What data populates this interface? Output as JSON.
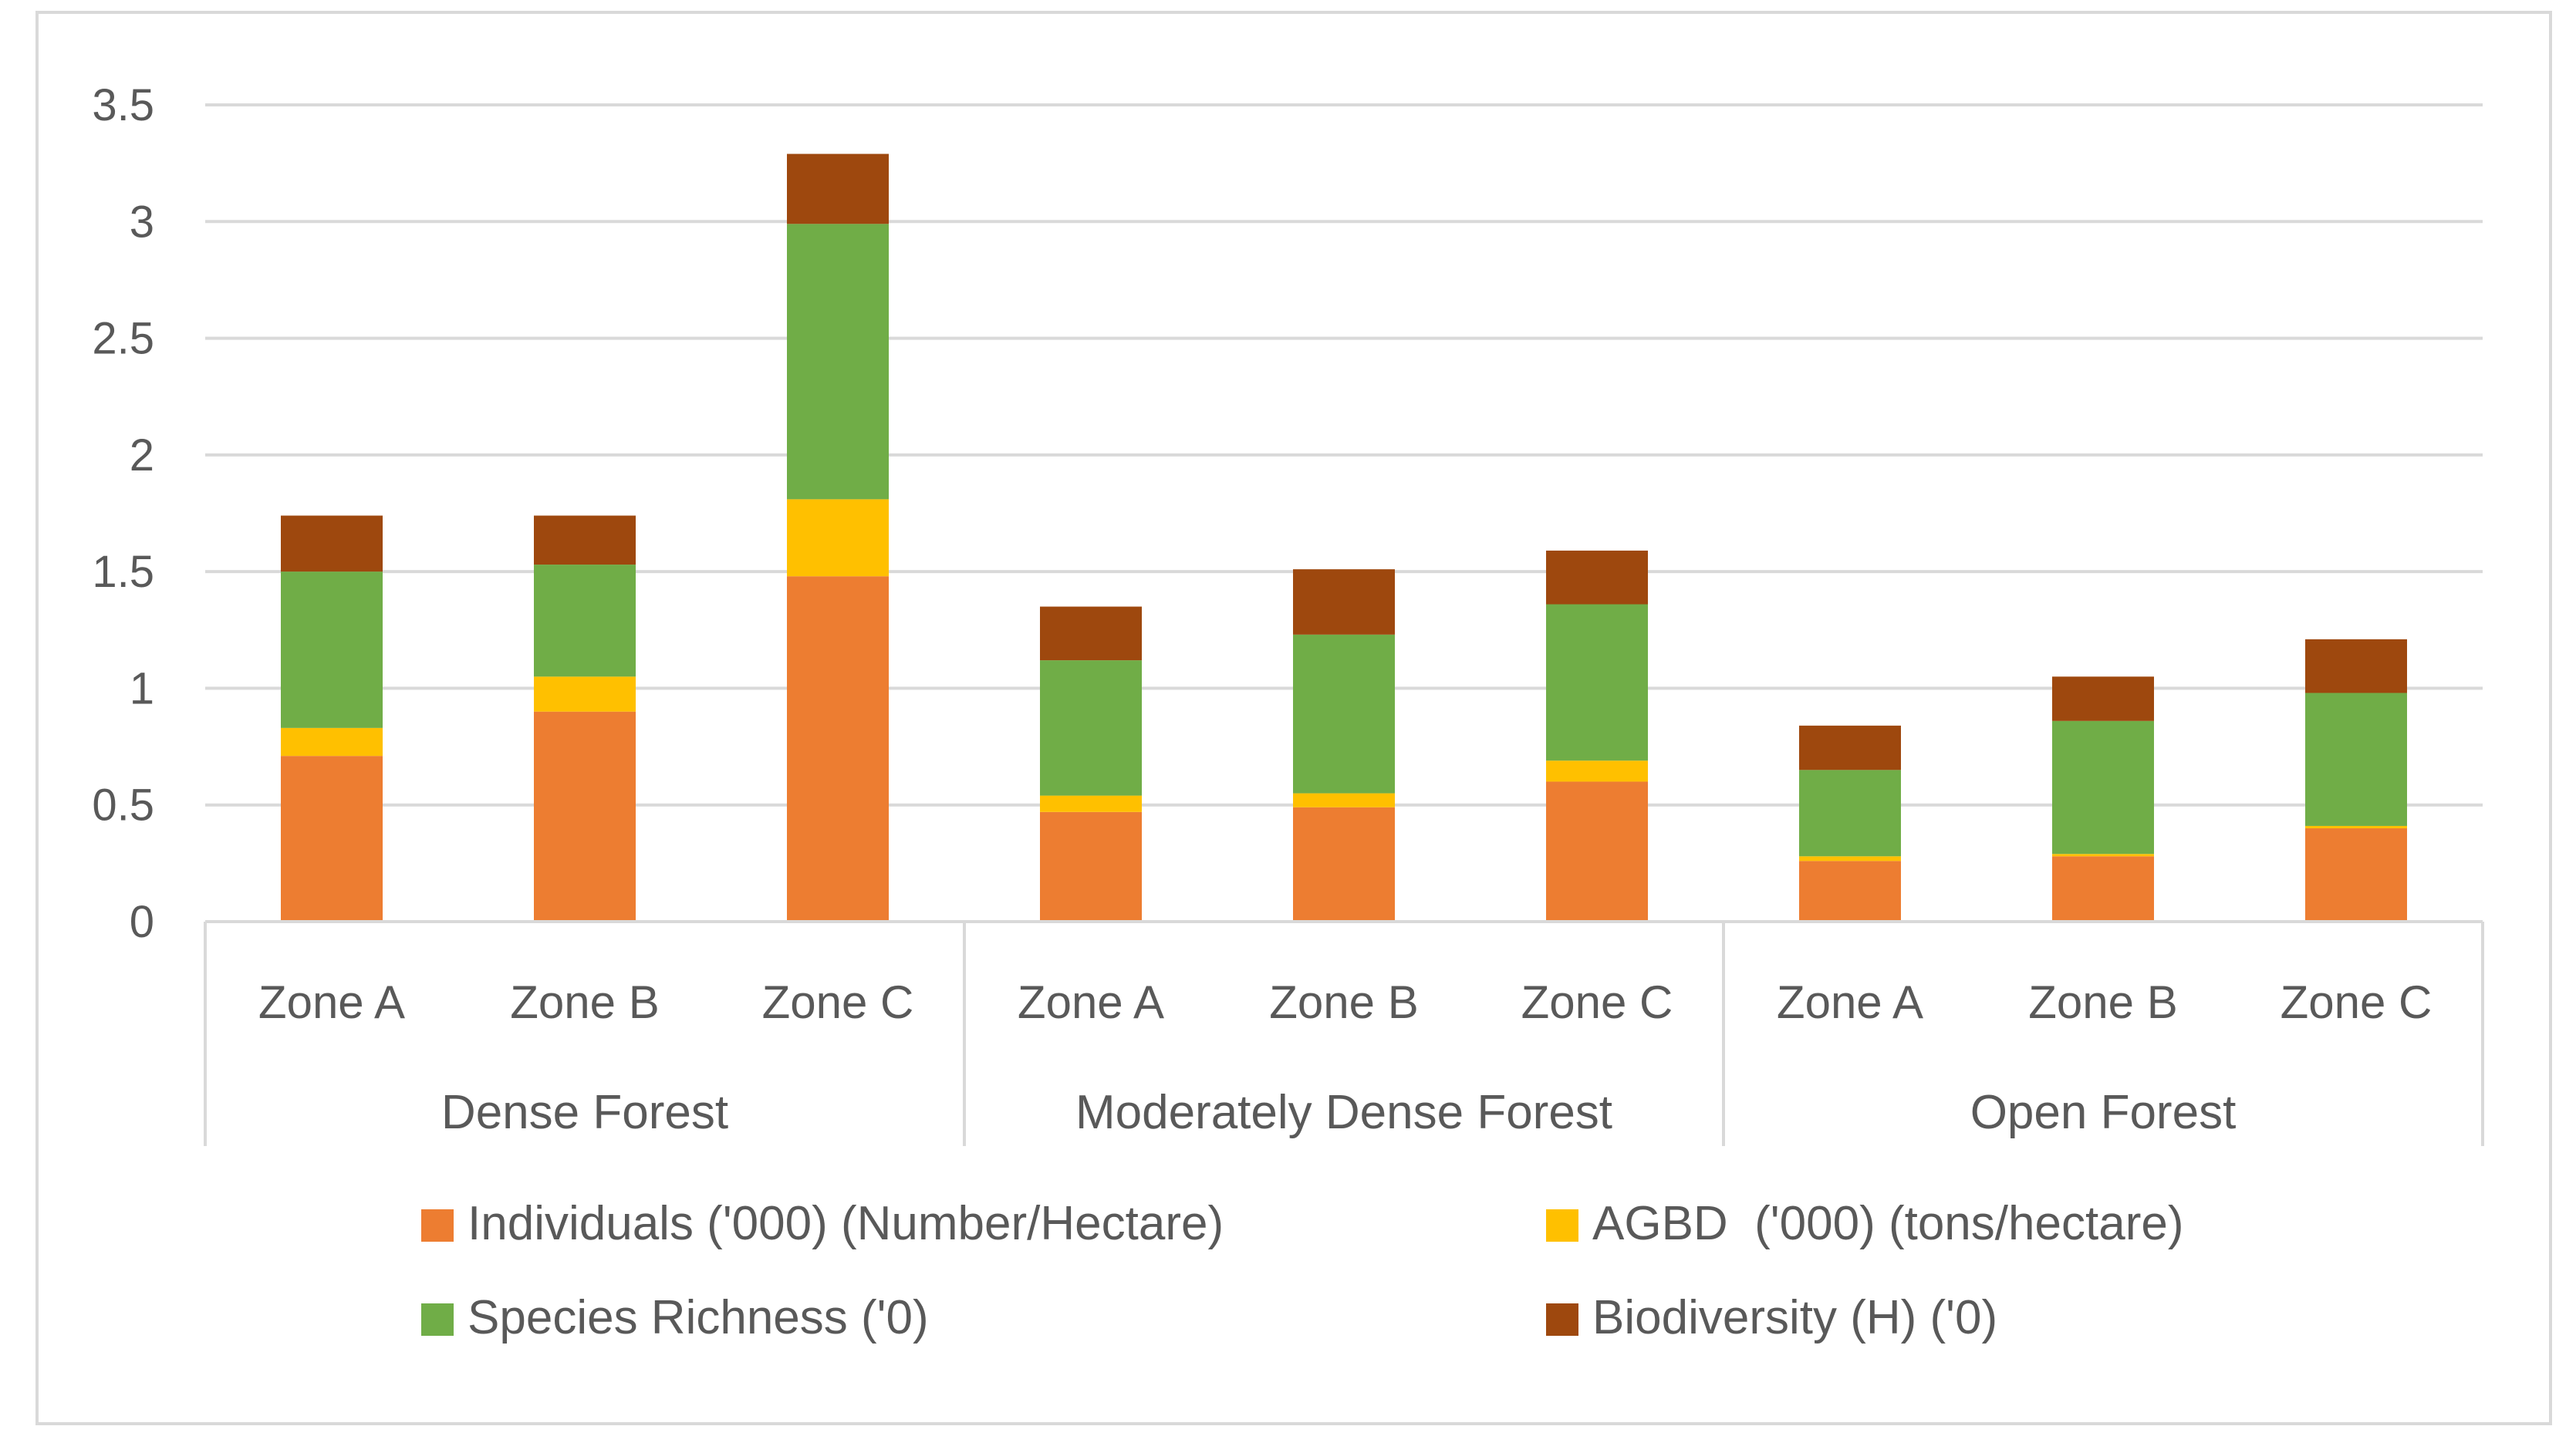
{
  "chart_data": {
    "type": "bar",
    "stacked": true,
    "title": "",
    "xlabel": "",
    "ylabel": "",
    "ylim": [
      0,
      3.5
    ],
    "yticks": [
      "0",
      "0.5",
      "1",
      "1.5",
      "2",
      "2.5",
      "3",
      "3.5"
    ],
    "ytick_values": [
      0,
      0.5,
      1,
      1.5,
      2,
      2.5,
      3,
      3.5
    ],
    "grid": true,
    "legend_position": "bottom",
    "groups": [
      {
        "name": "Dense Forest",
        "categories": [
          "Zone A",
          "Zone B",
          "Zone C"
        ]
      },
      {
        "name": "Moderately Dense Forest",
        "categories": [
          "Zone A",
          "Zone B",
          "Zone C"
        ]
      },
      {
        "name": "Open Forest",
        "categories": [
          "Zone A",
          "Zone B",
          "Zone C"
        ]
      }
    ],
    "series": [
      {
        "name": "Individuals ('000) (Number/Hectare)",
        "color": "#ED7D31",
        "values": [
          0.71,
          0.9,
          1.48,
          0.47,
          0.49,
          0.6,
          0.26,
          0.28,
          0.4
        ]
      },
      {
        "name": "AGBD  ('000) (tons/hectare)",
        "color": "#FFC000",
        "values": [
          0.12,
          0.15,
          0.33,
          0.07,
          0.06,
          0.09,
          0.02,
          0.01,
          0.01
        ]
      },
      {
        "name": "Species Richness ('0)",
        "color": "#70AD47",
        "values": [
          0.67,
          0.48,
          1.18,
          0.58,
          0.68,
          0.67,
          0.37,
          0.57,
          0.57
        ]
      },
      {
        "name": "Biodiversity (H) ('0)",
        "color": "#9E480E",
        "values": [
          0.24,
          0.21,
          0.3,
          0.23,
          0.28,
          0.23,
          0.19,
          0.19,
          0.23
        ]
      }
    ]
  }
}
